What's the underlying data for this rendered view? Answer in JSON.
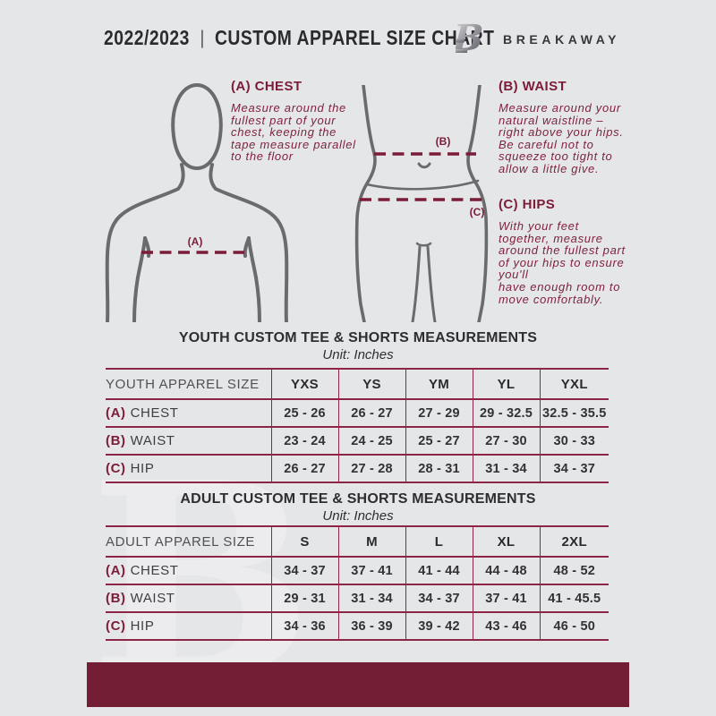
{
  "header": {
    "season": "2022/2023",
    "separator": "|",
    "title": "CUSTOM APPAREL SIZE CHART",
    "logo_letter": "B",
    "brand": "BREAKAWAY"
  },
  "guide": {
    "chest": {
      "heading": "(A) CHEST",
      "body": "Measure around the\nfullest part of your\nchest, keeping the\ntape measure parallel\nto the floor"
    },
    "waist": {
      "heading": "(B) WAIST",
      "body": "Measure around your\nnatural waistline –\nright above your hips.\nBe careful not to\nsqueeze too tight to\nallow a little give."
    },
    "hips": {
      "heading": "(C) HIPS",
      "body": "With your feet\ntogether, measure\naround the fullest part\nof your hips to ensure\nyou'll\nhave enough room to\nmove comfortably."
    },
    "marker_a": "(A)",
    "marker_b": "(B)",
    "marker_c": "(C)"
  },
  "youth_table": {
    "title": "YOUTH CUSTOM TEE & SHORTS MEASUREMENTS",
    "unit": "Unit: Inches",
    "size_header": "YOUTH APPAREL SIZE",
    "sizes": [
      "YXS",
      "YS",
      "YM",
      "YL",
      "YXL"
    ],
    "rows": [
      {
        "prefix": "(A)",
        "label": "CHEST",
        "values": [
          "25 - 26",
          "26 - 27",
          "27 - 29",
          "29 - 32.5",
          "32.5 - 35.5"
        ]
      },
      {
        "prefix": "(B)",
        "label": "WAIST",
        "values": [
          "23 - 24",
          "24 - 25",
          "25 - 27",
          "27 - 30",
          "30 - 33"
        ]
      },
      {
        "prefix": "(C)",
        "label": "HIP",
        "values": [
          "26 - 27",
          "27 - 28",
          "28 - 31",
          "31 - 34",
          "34 - 37"
        ]
      }
    ]
  },
  "adult_table": {
    "title": "ADULT CUSTOM TEE & SHORTS MEASUREMENTS",
    "unit": "Unit: Inches",
    "size_header": "ADULT APPAREL SIZE",
    "sizes": [
      "S",
      "M",
      "L",
      "XL",
      "2XL"
    ],
    "rows": [
      {
        "prefix": "(A)",
        "label": "CHEST",
        "values": [
          "34 - 37",
          "37 - 41",
          "41 - 44",
          "44 - 48",
          "48 - 52"
        ]
      },
      {
        "prefix": "(B)",
        "label": "WAIST",
        "values": [
          "29 - 31",
          "31 - 34",
          "34 - 37",
          "37 - 41",
          "41 - 45.5"
        ]
      },
      {
        "prefix": "(C)",
        "label": "HIP",
        "values": [
          "34 - 36",
          "36 - 39",
          "39 - 42",
          "43 - 46",
          "46 - 50"
        ]
      }
    ]
  },
  "watermark_letter": "B",
  "colors": {
    "background": "#e5e6e7",
    "maroon_text": "#7c1c39",
    "table_border": "#8e2547",
    "bottom_bar": "#731e35",
    "figure_outline": "#6a6b6d"
  }
}
